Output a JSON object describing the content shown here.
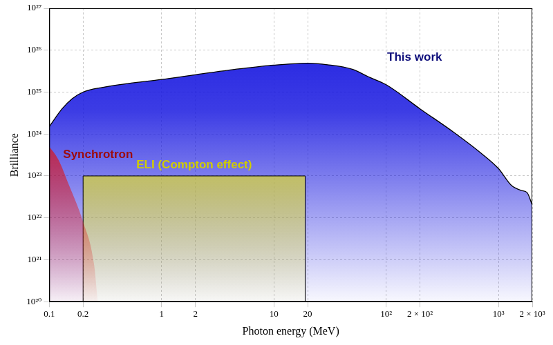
{
  "chart_data": {
    "type": "area",
    "x_label": "Photon energy (MeV)",
    "y_label": "Brilliance",
    "log": true,
    "grid": true,
    "xlim": [
      0.1,
      2000
    ],
    "xticks": [
      0.1,
      0.2,
      1,
      2,
      10,
      20,
      {
        "value": 100,
        "label": "10²"
      },
      {
        "value": 200,
        "label": "2 × 10²"
      },
      {
        "value": 1000,
        "label": "10³"
      },
      {
        "value": 2000,
        "label": "2 × 10³"
      }
    ],
    "ylim": [
      1e+20,
      1e+27
    ],
    "yticks": [
      {
        "value": 1e+20,
        "label": "10²⁰"
      },
      {
        "value": 1e+21,
        "label": "10²¹"
      },
      {
        "value": 1e+22,
        "label": "10²²"
      },
      {
        "value": 1e+23,
        "label": "10²³"
      },
      {
        "value": 1e+24,
        "label": "10²⁴"
      },
      {
        "value": 1e+25,
        "label": "10²⁵"
      },
      {
        "value": 1e+26,
        "label": "10²⁶"
      },
      {
        "value": 1e+27,
        "label": "10²⁷"
      }
    ],
    "series": [
      {
        "name": "This work",
        "color": "#1a1ae0",
        "x": [
          0.1,
          0.13,
          0.16,
          0.2,
          0.3,
          0.5,
          1,
          2,
          5,
          10,
          20,
          30,
          50,
          70,
          100,
          200,
          400,
          700,
          1000,
          1300,
          1600,
          1800,
          2000
        ],
        "values": [
          1.5e+24,
          4e+24,
          7e+24,
          1e+25,
          1.3e+25,
          1.6e+25,
          2e+25,
          2.6e+25,
          3.6e+25,
          4.4e+25,
          4.9e+25,
          4.5e+25,
          3.5e+25,
          2.3e+25,
          1.5e+25,
          4e+24,
          1.1e+24,
          3.5e+23,
          1.5e+23,
          6e+22,
          4.5e+22,
          4e+22,
          2e+22
        ]
      },
      {
        "name": "Synchrotron",
        "color": "#e01010",
        "x": [
          0.1,
          0.12,
          0.15,
          0.2,
          0.25,
          0.27
        ],
        "values": [
          5e+23,
          2.5e+23,
          6e+22,
          8e+21,
          8e+20,
          1e+20
        ]
      },
      {
        "name": "ELI (Compton effect)",
        "color": "#f5f000",
        "x": [
          0.2,
          0.2,
          19,
          19
        ],
        "values": [
          1e+20,
          1e+23,
          1e+23,
          1e+20
        ]
      }
    ]
  }
}
